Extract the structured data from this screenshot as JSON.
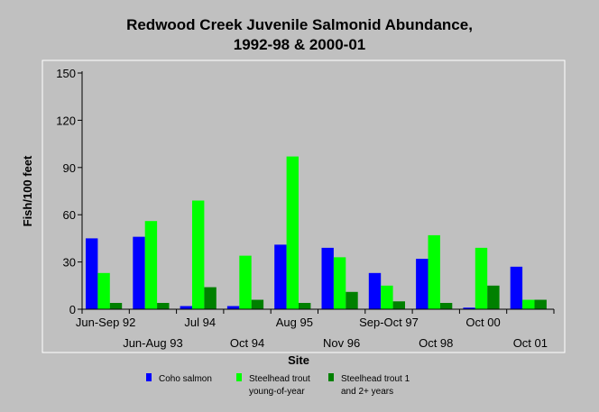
{
  "chart_data": {
    "type": "bar",
    "title_line1": "Redwood Creek Juvenile Salmonid Abundance,",
    "title_line2": "1992-98 & 2000-01",
    "xlabel": "Site",
    "ylabel": "Fish/100 feet",
    "ylim": [
      0,
      150
    ],
    "yticks": [
      0,
      30,
      60,
      90,
      120,
      150
    ],
    "grid": false,
    "legend_position": "bottom",
    "categories": [
      "Jun-Sep 92",
      "Jun-Aug 93",
      "Jul 94",
      "Oct 94",
      "Aug 95",
      "Nov 96",
      "Sep-Oct 97",
      "Oct 98",
      "Oct 00",
      "Oct 01"
    ],
    "series": [
      {
        "name": "Coho salmon",
        "color": "#0000ff",
        "values": [
          45,
          46,
          2,
          2,
          41,
          39,
          23,
          32,
          1,
          27
        ]
      },
      {
        "name_line1": "Steelhead trout",
        "name_line2": "young-of-year",
        "color": "#00ff00",
        "values": [
          23,
          56,
          69,
          34,
          97,
          33,
          15,
          47,
          39,
          6
        ]
      },
      {
        "name_line1": "Steelhead trout 1",
        "name_line2": "and 2+ years",
        "color": "#008000",
        "values": [
          4,
          4,
          14,
          6,
          4,
          11,
          5,
          4,
          15,
          6
        ]
      }
    ]
  }
}
